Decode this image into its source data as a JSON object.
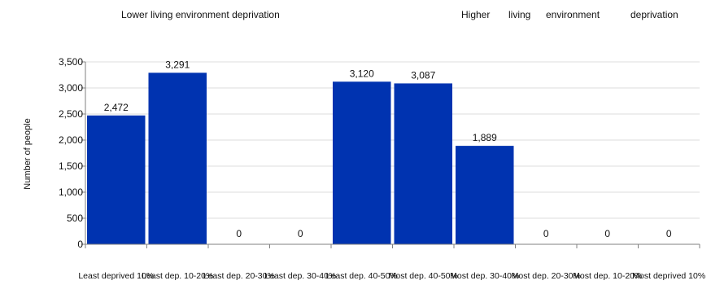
{
  "annotations": {
    "left": "Lower living environment deprivation",
    "right_words": [
      "Higher",
      "living",
      "environment",
      "deprivation"
    ]
  },
  "colors": {
    "bar": "#0033b0",
    "grid": "#dcdcdc",
    "axis": "#808080"
  },
  "chart_data": {
    "type": "bar",
    "title": "",
    "xlabel": "",
    "ylabel": "Number of people",
    "ylim": [
      0,
      3500
    ],
    "yticks": [
      0,
      500,
      1000,
      1500,
      2000,
      2500,
      3000,
      3500
    ],
    "ytick_labels": [
      "0",
      "500",
      "1,000",
      "1,500",
      "2,000",
      "2,500",
      "3,000",
      "3,500"
    ],
    "grid": true,
    "categories": [
      "Least deprived 10%",
      "Least dep. 10-20%",
      "Least dep. 20-30%",
      "Least dep. 30-40%",
      "Least dep. 40-50%",
      "Most dep. 40-50%",
      "Most dep. 30-40%",
      "Most dep. 20-30%",
      "Most dep. 10-20%",
      "Most deprived 10%"
    ],
    "values": [
      2472,
      3291,
      0,
      0,
      3120,
      3087,
      1889,
      0,
      0,
      0
    ],
    "value_labels": [
      "2,472",
      "3,291",
      "0",
      "0",
      "3,120",
      "3,087",
      "1,889",
      "0",
      "0",
      "0"
    ]
  }
}
